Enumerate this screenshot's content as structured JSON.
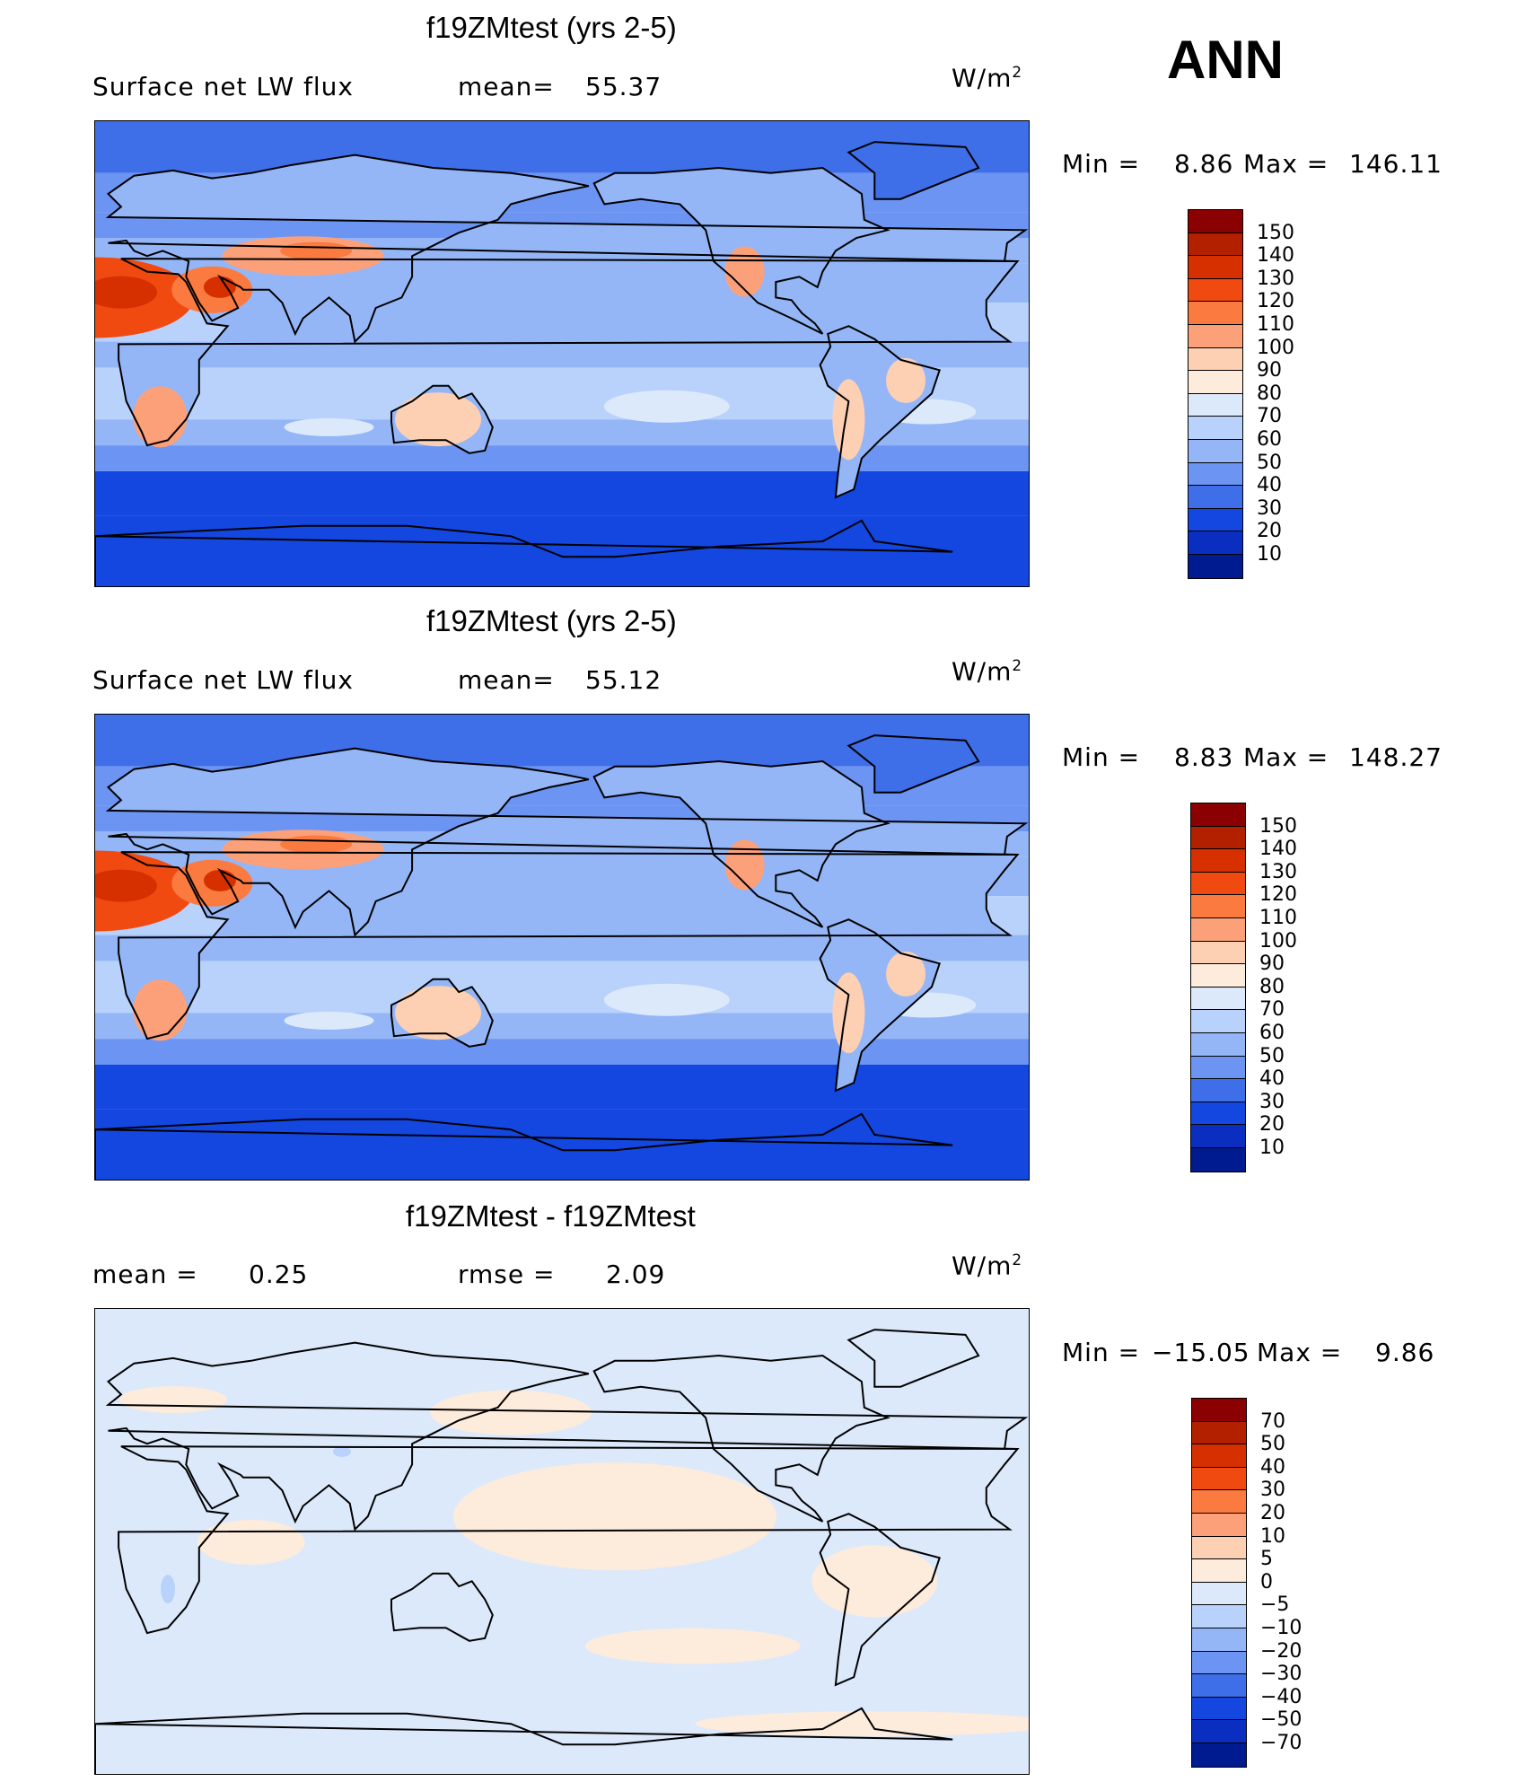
{
  "season": "ANN",
  "panels": [
    {
      "title": "f19ZMtest (yrs 2-5)",
      "variable": "Surface net LW flux",
      "stat1_label": "mean=",
      "stat1_value": "55.37",
      "stat2_label": "",
      "stat2_value": "",
      "units": "W/m",
      "units_sup": "2",
      "min_label": "Min =",
      "min_value": "8.86",
      "max_label": "Max =",
      "max_value": "146.11",
      "colorbar": {
        "labels": [
          "150",
          "140",
          "130",
          "120",
          "110",
          "100",
          "90",
          "80",
          "70",
          "60",
          "50",
          "40",
          "30",
          "20",
          "10"
        ],
        "colors": [
          "#8b0000",
          "#b22000",
          "#d63000",
          "#f04a10",
          "#fb7a40",
          "#fca07a",
          "#fdd0b4",
          "#fdebdc",
          "#dce9fb",
          "#b9d2fb",
          "#94b6f7",
          "#6c94f2",
          "#3f6ee9",
          "#1446e0",
          "#0a2fc0",
          "#001a90"
        ]
      },
      "map_style": "absolute"
    },
    {
      "title": "f19ZMtest (yrs 2-5)",
      "variable": "Surface net LW flux",
      "stat1_label": "mean=",
      "stat1_value": "55.12",
      "stat2_label": "",
      "stat2_value": "",
      "units": "W/m",
      "units_sup": "2",
      "min_label": "Min =",
      "min_value": "8.83",
      "max_label": "Max =",
      "max_value": "148.27",
      "colorbar": {
        "labels": [
          "150",
          "140",
          "130",
          "120",
          "110",
          "100",
          "90",
          "80",
          "70",
          "60",
          "50",
          "40",
          "30",
          "20",
          "10"
        ],
        "colors": [
          "#8b0000",
          "#b22000",
          "#d63000",
          "#f04a10",
          "#fb7a40",
          "#fca07a",
          "#fdd0b4",
          "#fdebdc",
          "#dce9fb",
          "#b9d2fb",
          "#94b6f7",
          "#6c94f2",
          "#3f6ee9",
          "#1446e0",
          "#0a2fc0",
          "#001a90"
        ]
      },
      "map_style": "absolute"
    },
    {
      "title": "f19ZMtest - f19ZMtest",
      "variable": "",
      "stat1_label": "mean =",
      "stat1_value": "0.25",
      "stat2_label": "rmse =",
      "stat2_value": "2.09",
      "units": "W/m",
      "units_sup": "2",
      "min_label": "Min =",
      "min_value": "−15.05",
      "max_label": "Max =",
      "max_value": "9.86",
      "colorbar": {
        "labels": [
          "70",
          "50",
          "40",
          "30",
          "20",
          "10",
          "5",
          "0",
          "−5",
          "−10",
          "−20",
          "−30",
          "−40",
          "−50",
          "−70"
        ],
        "colors": [
          "#8b0000",
          "#b22000",
          "#d63000",
          "#f04a10",
          "#fb7a40",
          "#fca07a",
          "#fdd0b4",
          "#fdebdc",
          "#dce9fb",
          "#b9d2fb",
          "#94b6f7",
          "#6c94f2",
          "#3f6ee9",
          "#1446e0",
          "#0a2fc0",
          "#001a90"
        ]
      },
      "map_style": "difference"
    }
  ]
}
